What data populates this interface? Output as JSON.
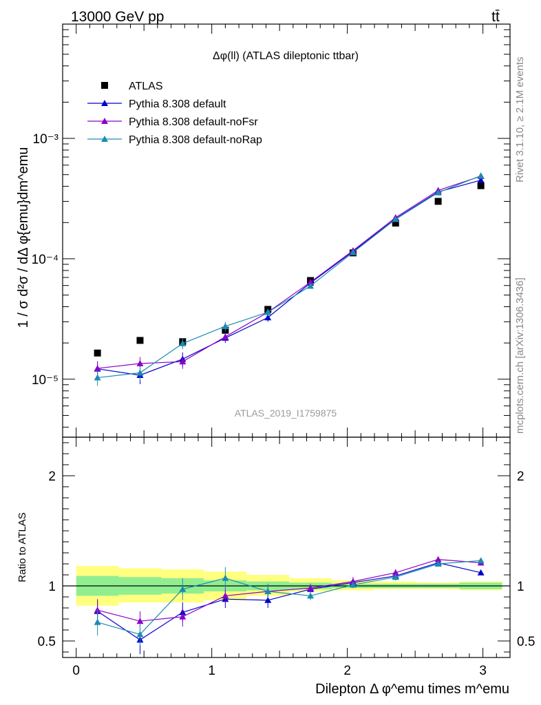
{
  "header": {
    "left": "13000 GeV pp",
    "right": "tt̄"
  },
  "side_labels": {
    "rivet": "Rivet 3.1.10, ≥ 2.1M events",
    "mcplots": "mcplots.cern.ch [arXiv:1306.3436]"
  },
  "chart_data": [
    {
      "type": "line",
      "title": "Δφ(ll) (ATLAS dileptonic ttbar)",
      "watermark": "ATLAS_2019_I1759875",
      "ylabel": "1 / σ  d²σ / dΔ φ{emu}dm^emu",
      "yscale": "log",
      "ylim": [
        3.3e-06,
        0.0089
      ],
      "xlim": [
        -0.1,
        3.2
      ],
      "y_ticks": [
        {
          "value": 1e-05,
          "label": "10⁻⁵"
        },
        {
          "value": 0.0001,
          "label": "10⁻⁴"
        },
        {
          "value": 0.001,
          "label": "10⁻³"
        }
      ],
      "x": [
        0.157,
        0.471,
        0.785,
        1.1,
        1.414,
        1.728,
        2.042,
        2.356,
        2.67,
        2.985
      ],
      "legend_position": "top-left",
      "series": [
        {
          "name": "ATLAS",
          "color": "#000000",
          "marker": "square",
          "values": [
            1.65e-05,
            2.1e-05,
            2.05e-05,
            2.55e-05,
            3.8e-05,
            6.6e-05,
            0.000112,
            0.000198,
            0.0003,
            0.000405
          ]
        },
        {
          "name": "Pythia 8.308 default",
          "color": "#0000cc",
          "marker": "triangle",
          "values": [
            1.22e-05,
            1.08e-05,
            1.47e-05,
            2.2e-05,
            3.25e-05,
            6.3e-05,
            0.000115,
            0.000215,
            0.00036,
            0.00045
          ],
          "errors": [
            1.8e-06,
            1.7e-06,
            2e-06,
            2e-06,
            2.5e-06,
            3e-06,
            4e-06,
            5e-06,
            6e-06,
            7e-06
          ]
        },
        {
          "name": "Pythia 8.308 default-noFsr",
          "color": "#8b00c8",
          "marker": "triangle",
          "values": [
            1.23e-05,
            1.35e-05,
            1.4e-05,
            2.25e-05,
            3.6e-05,
            6.4e-05,
            0.000117,
            0.00022,
            0.00037,
            0.000485
          ],
          "errors": [
            1.8e-06,
            1.8e-06,
            1.8e-06,
            2e-06,
            2.5e-06,
            3e-06,
            4e-06,
            5e-06,
            6e-06,
            7e-06
          ]
        },
        {
          "name": "Pythia 8.308 default-noRap",
          "color": "#1a8cb0",
          "marker": "triangle",
          "values": [
            1.03e-05,
            1.13e-05,
            1.98e-05,
            2.75e-05,
            3.6e-05,
            5.95e-05,
            0.000113,
            0.000213,
            0.000355,
            0.00049
          ],
          "errors": [
            1.5e-06,
            1.5e-06,
            2e-06,
            2.5e-06,
            2.5e-06,
            3e-06,
            4e-06,
            5e-06,
            6e-06,
            7e-06
          ]
        }
      ]
    },
    {
      "type": "line",
      "ylabel": "Ratio to ATLAS",
      "xlabel": "Dilepton Δ φ^emu times m^emu",
      "ylim": [
        0.35,
        2.35
      ],
      "xlim": [
        -0.1,
        3.2
      ],
      "y_ticks": [
        {
          "value": 0.5,
          "label": "0.5"
        },
        {
          "value": 1,
          "label": "1"
        },
        {
          "value": 2,
          "label": "2"
        }
      ],
      "x_ticks": [
        {
          "value": 0,
          "label": "0"
        },
        {
          "value": 1,
          "label": "1"
        },
        {
          "value": 2,
          "label": "2"
        },
        {
          "value": 3,
          "label": "3"
        }
      ],
      "x": [
        0.157,
        0.471,
        0.785,
        1.1,
        1.414,
        1.728,
        2.042,
        2.356,
        2.67,
        2.985
      ],
      "bin_edges": [
        0,
        0.314,
        0.628,
        0.942,
        1.257,
        1.571,
        1.885,
        2.199,
        2.513,
        2.827,
        3.142
      ],
      "bands": {
        "total_uncertainty": {
          "color": "#ffff80",
          "lo": [
            0.82,
            0.85,
            0.85,
            0.87,
            0.91,
            0.95,
            0.96,
            0.97,
            0.97,
            0.96
          ],
          "hi": [
            1.18,
            1.16,
            1.15,
            1.13,
            1.1,
            1.07,
            1.05,
            1.04,
            1.03,
            1.04
          ]
        },
        "stat_uncertainty": {
          "color": "#90ee90",
          "lo": [
            0.91,
            0.92,
            0.93,
            0.95,
            0.96,
            0.97,
            0.98,
            0.98,
            0.98,
            0.97
          ],
          "hi": [
            1.09,
            1.08,
            1.07,
            1.05,
            1.04,
            1.03,
            1.02,
            1.02,
            1.02,
            1.03
          ]
        }
      },
      "series": [
        {
          "name": "Pythia 8.308 default",
          "color": "#0000cc",
          "values": [
            0.77,
            0.51,
            0.76,
            0.88,
            0.87,
            0.97,
            1.03,
            1.09,
            1.21,
            1.12
          ],
          "errors": [
            0.1,
            0.13,
            0.09,
            0.08,
            0.07,
            0.04,
            0.04,
            0.03,
            0.02,
            0.02
          ]
        },
        {
          "name": "Pythia 8.308 default-noFsr",
          "color": "#8b00c8",
          "values": [
            0.78,
            0.68,
            0.72,
            0.91,
            0.95,
            0.98,
            1.04,
            1.12,
            1.24,
            1.21
          ],
          "errors": [
            0.1,
            0.09,
            0.09,
            0.08,
            0.06,
            0.04,
            0.04,
            0.03,
            0.02,
            0.02
          ]
        },
        {
          "name": "Pythia 8.308 default-noRap",
          "color": "#1a8cb0",
          "values": [
            0.67,
            0.56,
            0.97,
            1.07,
            0.95,
            0.91,
            1.01,
            1.08,
            1.2,
            1.23
          ],
          "errors": [
            0.12,
            0.1,
            0.1,
            0.1,
            0.07,
            0.04,
            0.03,
            0.03,
            0.02,
            0.02
          ]
        }
      ]
    }
  ]
}
